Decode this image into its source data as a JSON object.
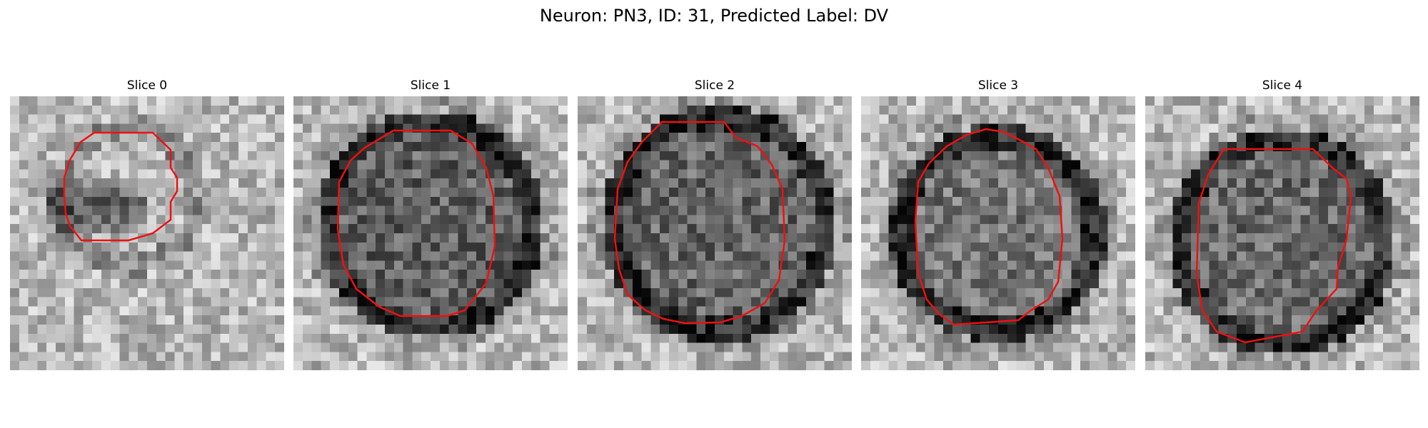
{
  "figure": {
    "title": "Neuron: PN3, ID: 31, Predicted Label: DV",
    "contour_color": "#ee1111",
    "panels": [
      {
        "title": "Slice 0"
      },
      {
        "title": "Slice 1"
      },
      {
        "title": "Slice 2"
      },
      {
        "title": "Slice 3"
      },
      {
        "title": "Slice 4"
      }
    ]
  }
}
